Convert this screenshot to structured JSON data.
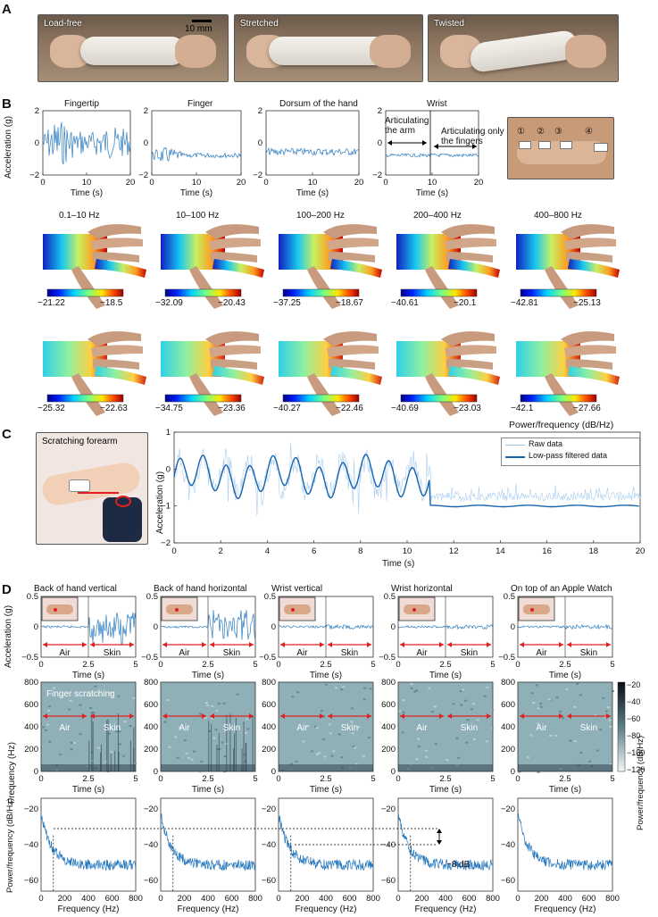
{
  "panelA": {
    "letter": "A",
    "photos": [
      {
        "caption": "Load-free",
        "scale_label": "10 mm"
      },
      {
        "caption": "Stretched"
      },
      {
        "caption": "Twisted"
      }
    ]
  },
  "panelB": {
    "letter": "B",
    "ylabel": "Acceleration (g)",
    "xlabel": "Time (s)",
    "locations": [
      "Fingertip",
      "Finger",
      "Dorsum of the hand",
      "Wrist"
    ],
    "xticks": [
      "0",
      "10",
      "20"
    ],
    "yticks": [
      "2",
      "0",
      "−2"
    ],
    "wrist_annot_arm": "Articulating the arm",
    "wrist_annot_fingers": "Articulating only the fingers",
    "sensor_marks": [
      "①",
      "②",
      "③",
      "④"
    ],
    "bands": [
      "0.1–10 Hz",
      "10–100 Hz",
      "100–200 Hz",
      "200–400 Hz",
      "400–800 Hz"
    ],
    "row1_ranges": [
      [
        "−21.22",
        "−18.5"
      ],
      [
        "−32.09",
        "−20.43"
      ],
      [
        "−37.25",
        "−18.67"
      ],
      [
        "−40.61",
        "−20.1"
      ],
      [
        "−42.81",
        "−25.13"
      ]
    ],
    "row2_ranges": [
      [
        "−25.32",
        "−22.63"
      ],
      [
        "−34.75",
        "−23.36"
      ],
      [
        "−40.27",
        "−22.46"
      ],
      [
        "−40.69",
        "−23.03"
      ],
      [
        "−42.1",
        "−27.66"
      ]
    ],
    "power_label": "Power/frequency (dB/Hz)"
  },
  "panelC": {
    "letter": "C",
    "photo_caption": "Scratching forearm",
    "chart_data": {
      "type": "line",
      "xlabel": "Time (s)",
      "ylabel": "Acceleration (g)",
      "xlim": [
        0,
        20
      ],
      "ylim": [
        -2,
        1
      ],
      "xticks": [
        "0",
        "2",
        "4",
        "6",
        "8",
        "10",
        "12",
        "14",
        "16",
        "18",
        "20"
      ],
      "yticks": [
        "1",
        "0",
        "−1",
        "−2"
      ],
      "legend": [
        "Raw data",
        "Low-pass filtered data"
      ],
      "legend_position": "top-right",
      "series": [
        {
          "name": "Raw data",
          "description": "scratching 0–11 s around −0.2 g, then ~−0.75 g"
        },
        {
          "name": "Low-pass filtered data",
          "description": "oscillating 0–11 s around −0.2 g, then ~−1.0 g"
        }
      ]
    }
  },
  "panelD": {
    "letter": "D",
    "conditions": [
      "Back of hand vertical",
      "Back of hand horizontal",
      "Wrist vertical",
      "Wrist horizontal",
      "On top of an Apple Watch"
    ],
    "row1_ylabel": "Acceleration (g)",
    "row1_yticks": [
      "0.5",
      "0",
      "−0.5"
    ],
    "time_xticks": [
      "0",
      "2.5",
      "5"
    ],
    "time_xlabel": "Time (s)",
    "air_label": "Air",
    "skin_label": "Skin",
    "row2_ylabel": "Frequency (Hz)",
    "row2_yticks": [
      "800",
      "600",
      "400",
      "200",
      "0"
    ],
    "finger_scratching": "Finger scratching",
    "cbar_ticks": [
      "−20",
      "−40",
      "−60",
      "−80",
      "−100",
      "−120"
    ],
    "cbar_label": "Power/frequency (dB/Hz)",
    "row3_ylabel": "Power/frequency (dB/Hz)",
    "row3_yticks": [
      "−20",
      "−40",
      "−60"
    ],
    "freq_xticks": [
      "0",
      "200",
      "400",
      "600",
      "800"
    ],
    "freq_xlabel": "Frequency (Hz)",
    "db_annot": "~8 dB"
  }
}
